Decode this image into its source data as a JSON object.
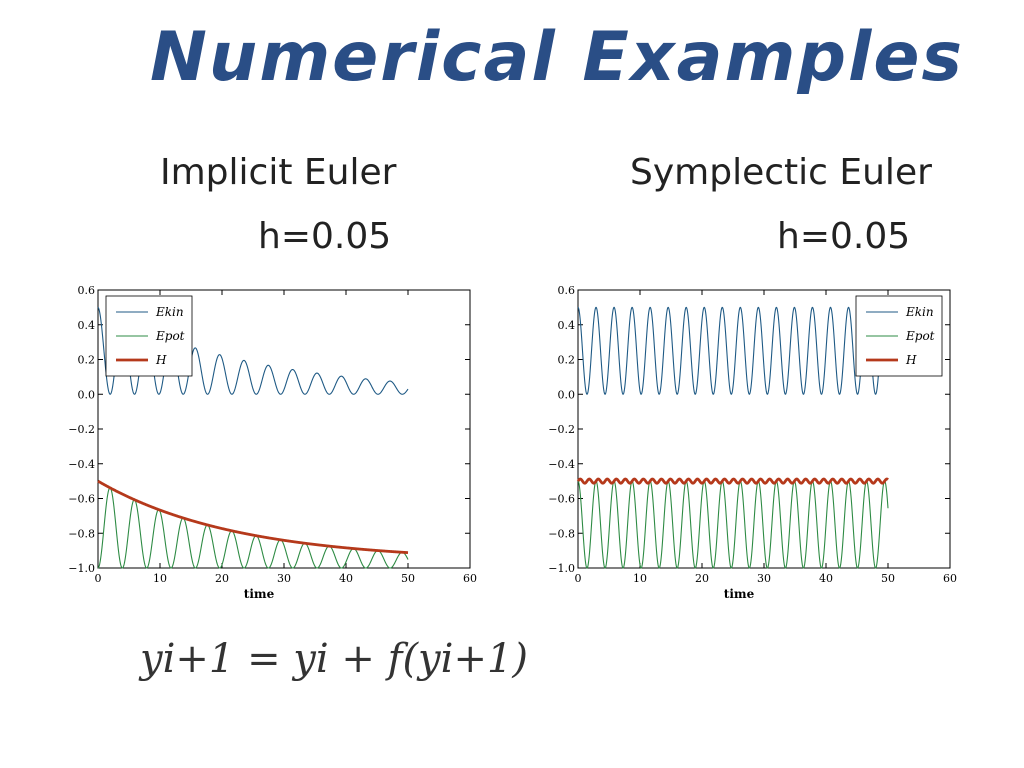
{
  "page": {
    "title": "Numerical Examples",
    "formula": "yi+1 = yi + f(yi+1)"
  },
  "colors": {
    "title": "#2a4e86",
    "ekin": "#1f5a85",
    "epot": "#2e8b44",
    "H": "#b5391b"
  },
  "chart_data": [
    {
      "type": "line",
      "method_label": "Implicit Euler",
      "step_label": "h=0.05",
      "xlabel": "time",
      "ylabel": "",
      "xlim": [
        0,
        60
      ],
      "ylim": [
        -1.0,
        0.6
      ],
      "xticks": [
        "0",
        "10",
        "20",
        "30",
        "40",
        "50",
        "60"
      ],
      "yticks": [
        "0.6",
        "0.4",
        "0.2",
        "0.0",
        "−0.2",
        "−0.4",
        "−0.6",
        "−0.8",
        "−1.0"
      ],
      "legend": "top-left",
      "t_end": 50,
      "series": [
        {
          "name": "E_kin",
          "legend_label": "Ekin",
          "color": "#1f5a85",
          "description": "0.25*(1+cos(2w t))*exp(-0.04 t)",
          "omega": 1.6,
          "damping": 0.04,
          "start": 0.5
        },
        {
          "name": "E_pot",
          "legend_label": "Epot",
          "color": "#2e8b44",
          "omega": 1.6,
          "damping": 0.04,
          "start": -0.5
        },
        {
          "name": "H",
          "legend_label": "H",
          "color": "#b5391b",
          "start": -0.5,
          "end": -0.96
        }
      ]
    },
    {
      "type": "line",
      "method_label": "Symplectic Euler",
      "step_label": "h=0.05",
      "xlabel": "time",
      "ylabel": "",
      "xlim": [
        0,
        60
      ],
      "ylim": [
        -1.0,
        0.6
      ],
      "xticks": [
        "0",
        "10",
        "20",
        "30",
        "40",
        "50",
        "60"
      ],
      "yticks": [
        "0.6",
        "0.4",
        "0.2",
        "0.0",
        "−0.2",
        "−0.4",
        "−0.6",
        "−0.8",
        "−1.0"
      ],
      "legend": "top-right",
      "t_end": 50,
      "series": [
        {
          "name": "E_kin",
          "legend_label": "Ekin",
          "color": "#1f5a85",
          "omega": 1.6,
          "min": 0.0,
          "max": 0.5
        },
        {
          "name": "E_pot",
          "legend_label": "Epot",
          "color": "#2e8b44",
          "omega": 1.6,
          "min": -1.0,
          "max": -0.5
        },
        {
          "name": "H",
          "legend_label": "H",
          "color": "#b5391b",
          "mean": -0.5,
          "amplitude": 0.012
        }
      ]
    }
  ]
}
